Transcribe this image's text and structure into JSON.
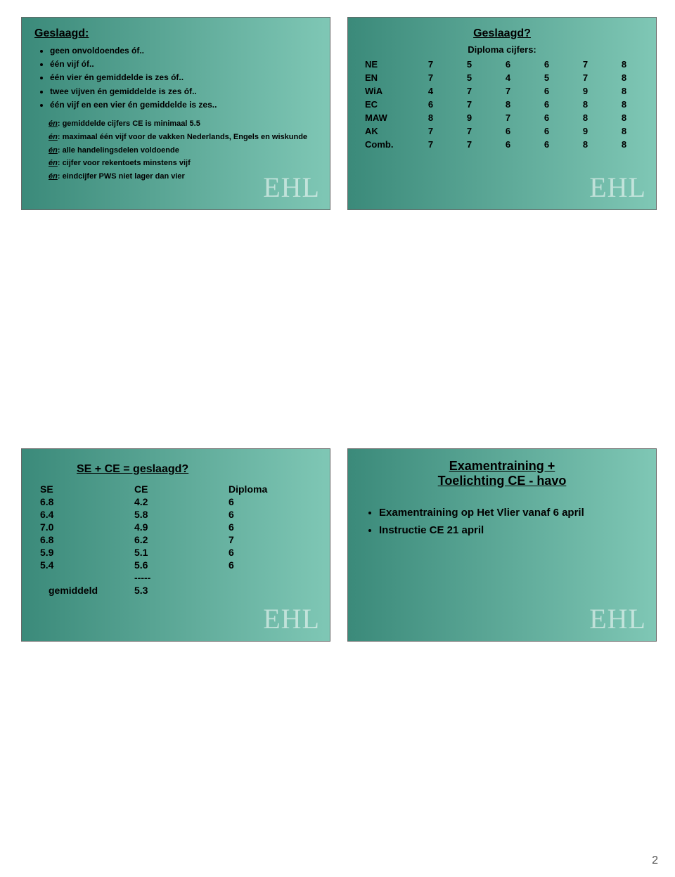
{
  "page_number": "2",
  "watermark": "EHL",
  "slide1": {
    "title": "Geslaagd:",
    "bullets": [
      "geen onvoldoendes óf..",
      "één vijf óf..",
      "één vier én gemiddelde is zes óf..",
      "twee vijven én gemiddelde is zes óf..",
      "één vijf en een vier én gemiddelde is zes.."
    ],
    "en_label": "én",
    "en_items": [
      "gemiddelde cijfers CE is minimaal 5.5",
      "maximaal één vijf voor de vakken Nederlands, Engels en wiskunde",
      "alle handelingsdelen voldoende",
      "cijfer voor rekentoets minstens vijf",
      "eindcijfer PWS niet lager dan vier"
    ]
  },
  "slide2": {
    "title": "Geslaagd?",
    "subtitle": "Diploma cijfers:",
    "rows": [
      {
        "subj": "NE",
        "v": [
          "7",
          "5",
          "6",
          "6",
          "7",
          "8"
        ]
      },
      {
        "subj": "EN",
        "v": [
          "7",
          "5",
          "4",
          "5",
          "7",
          "8"
        ]
      },
      {
        "subj": "WiA",
        "v": [
          "4",
          "7",
          "7",
          "6",
          "9",
          "8"
        ]
      },
      {
        "subj": "EC",
        "v": [
          "6",
          "7",
          "8",
          "6",
          "8",
          "8"
        ]
      },
      {
        "subj": "MAW",
        "v": [
          "8",
          "9",
          "7",
          "6",
          "8",
          "8"
        ]
      },
      {
        "subj": "AK",
        "v": [
          "7",
          "7",
          "6",
          "6",
          "9",
          "8"
        ]
      },
      {
        "subj": "Comb.",
        "v": [
          "7",
          "7",
          "6",
          "6",
          "8",
          "8"
        ]
      }
    ]
  },
  "slide3": {
    "title": "SE + CE = geslaagd?",
    "header": {
      "se": "SE",
      "ce": "CE",
      "dip": "Diploma"
    },
    "rows": [
      {
        "se": "6.8",
        "ce": "4.2",
        "dip": "6"
      },
      {
        "se": "6.4",
        "ce": "5.8",
        "dip": "6"
      },
      {
        "se": "7.0",
        "ce": "4.9",
        "dip": "6"
      },
      {
        "se": "6.8",
        "ce": "6.2",
        "dip": "7"
      },
      {
        "se": "5.9",
        "ce": "5.1",
        "dip": "6"
      },
      {
        "se": "5.4",
        "ce": "5.6",
        "dip": "6"
      }
    ],
    "divider": "-----",
    "footer_label": "gemiddeld",
    "footer_value": "5.3"
  },
  "slide4": {
    "title_line1": "Examentraining +",
    "title_line2": "Toelichting CE -  havo",
    "bullets": [
      "Examentraining op Het Vlier vanaf 6 april",
      "Instructie CE 21 april"
    ]
  }
}
